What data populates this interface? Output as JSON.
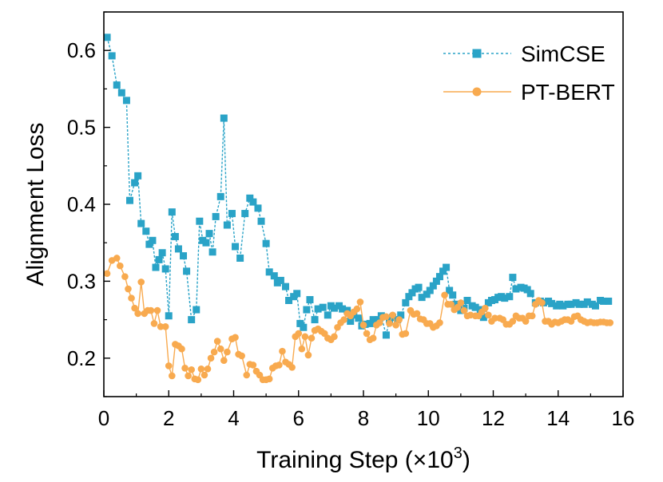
{
  "chart_data": {
    "type": "line",
    "title": "",
    "xlabel": "Training Step (×10",
    "xlabel_superscript": "3",
    "xlabel_suffix": ")",
    "ylabel": "Alignment Loss",
    "xlim": [
      0,
      16
    ],
    "ylim": [
      0.15,
      0.65
    ],
    "xticks": [
      0,
      2,
      4,
      6,
      8,
      10,
      12,
      14,
      16
    ],
    "yticks": [
      0.2,
      0.3,
      0.4,
      0.5,
      0.6
    ],
    "ytick_labels": [
      "0.2",
      "0.3",
      "0.4",
      "0.5",
      "0.6"
    ],
    "legend_position": "top-right",
    "grid": false,
    "series": [
      {
        "name": "SimCSE",
        "color": "#2aa3c7",
        "marker": "square",
        "line_style": "dashed",
        "x": [
          0.1,
          0.25,
          0.4,
          0.55,
          0.7,
          0.8,
          0.95,
          1.05,
          1.15,
          1.3,
          1.4,
          1.5,
          1.6,
          1.7,
          1.8,
          1.9,
          2.0,
          2.1,
          2.2,
          2.3,
          2.45,
          2.55,
          2.7,
          2.85,
          2.95,
          3.05,
          3.15,
          3.25,
          3.35,
          3.45,
          3.6,
          3.7,
          3.8,
          3.95,
          4.05,
          4.2,
          4.35,
          4.5,
          4.6,
          4.75,
          4.85,
          5.0,
          5.1,
          5.25,
          5.35,
          5.45,
          5.6,
          5.7,
          5.85,
          5.95,
          6.05,
          6.15,
          6.25,
          6.35,
          6.5,
          6.6,
          6.75,
          6.9,
          7.0,
          7.1,
          7.25,
          7.35,
          7.5,
          7.6,
          7.7,
          7.85,
          7.95,
          8.05,
          8.2,
          8.3,
          8.45,
          8.55,
          8.7,
          8.8,
          8.9,
          9.05,
          9.15,
          9.3,
          9.4,
          9.5,
          9.6,
          9.7,
          9.8,
          9.95,
          10.05,
          10.15,
          10.25,
          10.35,
          10.45,
          10.55,
          10.65,
          10.75,
          10.85,
          11.0,
          11.1,
          11.2,
          11.35,
          11.45,
          11.6,
          11.7,
          11.85,
          11.95,
          12.05,
          12.15,
          12.25,
          12.35,
          12.5,
          12.6,
          12.7,
          12.85,
          12.95,
          13.05,
          13.15,
          13.3,
          13.45,
          13.55,
          13.7,
          13.8,
          13.95,
          14.05,
          14.15,
          14.3,
          14.4,
          14.55,
          14.65,
          14.8,
          14.9,
          15.05,
          15.15,
          15.3,
          15.4,
          15.55
        ],
        "values": [
          0.617,
          0.593,
          0.555,
          0.545,
          0.535,
          0.405,
          0.428,
          0.437,
          0.375,
          0.365,
          0.348,
          0.353,
          0.318,
          0.328,
          0.337,
          0.316,
          0.255,
          0.39,
          0.358,
          0.342,
          0.333,
          0.313,
          0.25,
          0.263,
          0.378,
          0.353,
          0.35,
          0.362,
          0.338,
          0.384,
          0.41,
          0.512,
          0.373,
          0.388,
          0.345,
          0.33,
          0.388,
          0.408,
          0.403,
          0.395,
          0.378,
          0.349,
          0.312,
          0.307,
          0.298,
          0.301,
          0.293,
          0.275,
          0.28,
          0.284,
          0.245,
          0.24,
          0.263,
          0.276,
          0.25,
          0.264,
          0.266,
          0.256,
          0.268,
          0.265,
          0.268,
          0.264,
          0.262,
          0.248,
          0.256,
          0.252,
          0.242,
          0.244,
          0.245,
          0.25,
          0.25,
          0.255,
          0.23,
          0.25,
          0.253,
          0.25,
          0.256,
          0.272,
          0.28,
          0.285,
          0.29,
          0.292,
          0.279,
          0.283,
          0.288,
          0.294,
          0.3,
          0.306,
          0.313,
          0.318,
          0.288,
          0.282,
          0.27,
          0.262,
          0.265,
          0.275,
          0.268,
          0.266,
          0.263,
          0.253,
          0.272,
          0.275,
          0.276,
          0.279,
          0.28,
          0.278,
          0.28,
          0.305,
          0.29,
          0.292,
          0.291,
          0.289,
          0.284,
          0.272,
          0.274,
          0.272,
          0.274,
          0.271,
          0.268,
          0.27,
          0.268,
          0.27,
          0.27,
          0.272,
          0.27,
          0.27,
          0.273,
          0.27,
          0.268,
          0.275,
          0.274,
          0.274
        ]
      },
      {
        "name": "PT-BERT",
        "color": "#f8aa4f",
        "marker": "circle",
        "line_style": "solid",
        "x": [
          0.1,
          0.25,
          0.4,
          0.5,
          0.65,
          0.75,
          0.85,
          0.95,
          1.05,
          1.15,
          1.25,
          1.35,
          1.45,
          1.55,
          1.65,
          1.75,
          1.9,
          2.0,
          2.1,
          2.2,
          2.3,
          2.4,
          2.5,
          2.6,
          2.7,
          2.8,
          2.9,
          3.0,
          3.1,
          3.2,
          3.3,
          3.4,
          3.5,
          3.6,
          3.7,
          3.8,
          3.95,
          4.05,
          4.15,
          4.25,
          4.4,
          4.5,
          4.6,
          4.7,
          4.8,
          4.9,
          5.0,
          5.1,
          5.2,
          5.3,
          5.4,
          5.5,
          5.6,
          5.7,
          5.8,
          5.9,
          6.0,
          6.1,
          6.2,
          6.3,
          6.4,
          6.5,
          6.6,
          6.7,
          6.8,
          6.9,
          7.0,
          7.1,
          7.2,
          7.3,
          7.4,
          7.5,
          7.6,
          7.7,
          7.8,
          7.9,
          8.0,
          8.1,
          8.2,
          8.3,
          8.4,
          8.5,
          8.6,
          8.7,
          8.8,
          8.9,
          9.0,
          9.1,
          9.2,
          9.3,
          9.45,
          9.55,
          9.65,
          9.75,
          9.85,
          9.95,
          10.05,
          10.15,
          10.25,
          10.35,
          10.5,
          10.6,
          10.7,
          10.8,
          10.9,
          11.0,
          11.1,
          11.2,
          11.3,
          11.45,
          11.55,
          11.65,
          11.75,
          11.85,
          11.95,
          12.05,
          12.2,
          12.3,
          12.4,
          12.5,
          12.6,
          12.7,
          12.8,
          12.9,
          13.0,
          13.1,
          13.2,
          13.3,
          13.4,
          13.5,
          13.6,
          13.7,
          13.8,
          13.9,
          14.0,
          14.1,
          14.2,
          14.3,
          14.4,
          14.5,
          14.6,
          14.7,
          14.8,
          14.9,
          15.0,
          15.1,
          15.2,
          15.3,
          15.4,
          15.5,
          15.6
        ],
        "values": [
          0.31,
          0.327,
          0.33,
          0.32,
          0.306,
          0.29,
          0.278,
          0.265,
          0.258,
          0.299,
          0.258,
          0.262,
          0.262,
          0.245,
          0.262,
          0.241,
          0.241,
          0.19,
          0.177,
          0.218,
          0.216,
          0.212,
          0.187,
          0.177,
          0.185,
          0.173,
          0.172,
          0.186,
          0.178,
          0.186,
          0.2,
          0.208,
          0.222,
          0.212,
          0.197,
          0.208,
          0.225,
          0.227,
          0.205,
          0.203,
          0.178,
          0.192,
          0.191,
          0.183,
          0.178,
          0.172,
          0.172,
          0.173,
          0.187,
          0.19,
          0.191,
          0.209,
          0.195,
          0.192,
          0.188,
          0.228,
          0.232,
          0.212,
          0.228,
          0.204,
          0.226,
          0.236,
          0.238,
          0.235,
          0.232,
          0.226,
          0.224,
          0.228,
          0.24,
          0.246,
          0.25,
          0.258,
          0.255,
          0.26,
          0.264,
          0.273,
          0.243,
          0.232,
          0.224,
          0.226,
          0.243,
          0.246,
          0.253,
          0.254,
          0.245,
          0.256,
          0.243,
          0.25,
          0.231,
          0.232,
          0.262,
          0.257,
          0.258,
          0.251,
          0.25,
          0.245,
          0.245,
          0.24,
          0.242,
          0.246,
          0.282,
          0.27,
          0.27,
          0.263,
          0.266,
          0.272,
          0.262,
          0.255,
          0.256,
          0.255,
          0.255,
          0.26,
          0.265,
          0.256,
          0.248,
          0.252,
          0.252,
          0.25,
          0.244,
          0.244,
          0.248,
          0.255,
          0.252,
          0.252,
          0.248,
          0.255,
          0.255,
          0.27,
          0.275,
          0.272,
          0.248,
          0.248,
          0.244,
          0.247,
          0.246,
          0.248,
          0.25,
          0.25,
          0.248,
          0.254,
          0.255,
          0.25,
          0.248,
          0.246,
          0.247,
          0.246,
          0.246,
          0.247,
          0.247,
          0.246,
          0.246
        ]
      }
    ]
  }
}
